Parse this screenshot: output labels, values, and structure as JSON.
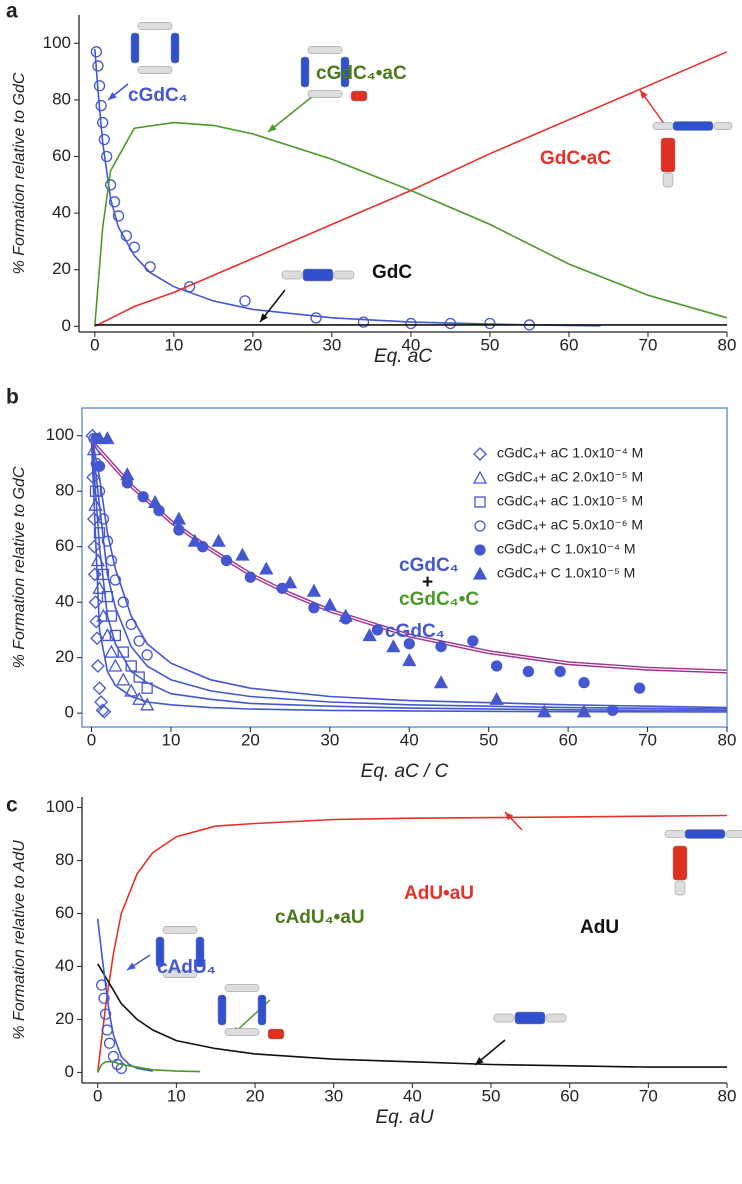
{
  "chart_data": [
    {
      "type": "line",
      "panel_label": "a",
      "xlabel": "Eq. aC",
      "ylabel": "% Formation relative to GdC",
      "xlim": [
        -2,
        80
      ],
      "ylim": [
        -2,
        110
      ],
      "xticks": [
        0,
        10,
        20,
        30,
        40,
        50,
        60,
        70,
        80
      ],
      "yticks": [
        0,
        20,
        40,
        60,
        80,
        100
      ],
      "series": [
        {
          "color": "#4457d0",
          "mode": "line",
          "x": [
            0,
            0.5,
            1,
            2,
            3,
            5,
            7,
            10,
            15,
            20,
            30,
            40,
            50,
            60,
            64
          ],
          "values": [
            98,
            80,
            65,
            45,
            35,
            25,
            19,
            14,
            9,
            6,
            3,
            1.5,
            0.8,
            0.3,
            0.2
          ]
        },
        {
          "color": "#4457d0",
          "mode": "markers",
          "marker": "circle-open",
          "x": [
            0.2,
            0.4,
            0.6,
            0.8,
            1,
            1.2,
            1.5,
            2,
            2.5,
            3,
            4,
            5,
            7,
            12,
            19,
            28,
            34,
            40,
            45,
            50,
            55
          ],
          "values": [
            97,
            92,
            85,
            78,
            72,
            66,
            60,
            50,
            44,
            39,
            32,
            28,
            21,
            14,
            9,
            3,
            1.5,
            1,
            1,
            1,
            0.5
          ]
        },
        {
          "color": "#4a9a2a",
          "mode": "line",
          "x": [
            0,
            1,
            2,
            5,
            10,
            15,
            20,
            30,
            40,
            50,
            60,
            70,
            80
          ],
          "values": [
            0,
            35,
            55,
            70,
            72,
            71,
            68,
            59,
            48,
            36,
            22,
            11,
            3
          ]
        },
        {
          "color": "#e8302a",
          "mode": "line",
          "x": [
            0,
            5,
            10,
            20,
            30,
            40,
            50,
            60,
            70,
            80
          ],
          "values": [
            0,
            7,
            12,
            24,
            36,
            48,
            61,
            73,
            85,
            97
          ]
        },
        {
          "color": "#111111",
          "mode": "line",
          "x": [
            0,
            80
          ],
          "values": [
            0.5,
            0.5
          ]
        }
      ],
      "annotations": [
        {
          "text": "cGdC₄",
          "color": "#4457d0"
        },
        {
          "text": "cGdC₄•aC",
          "color": "#4a7a1a"
        },
        {
          "text": "GdC•aC",
          "color": "#e8302a"
        },
        {
          "text": "GdC",
          "color": "#111111"
        }
      ]
    },
    {
      "type": "line",
      "panel_label": "b",
      "xlabel": "Eq. aC / C",
      "ylabel": "% Formation relative to GdC",
      "xlim": [
        -1.2,
        80
      ],
      "ylim": [
        -5,
        110
      ],
      "xticks": [
        0,
        10,
        20,
        30,
        40,
        50,
        60,
        70,
        80
      ],
      "yticks": [
        0,
        20,
        40,
        60,
        80,
        100
      ],
      "frame": true,
      "legend": "upper right",
      "series": [
        {
          "color": "#4457d0",
          "mode": "line",
          "x": [
            0,
            1,
            2,
            3,
            5,
            7,
            10,
            15,
            20,
            30,
            40,
            60,
            80
          ],
          "values": [
            98,
            30,
            15,
            10,
            6,
            4,
            3,
            2,
            1.5,
            1,
            0.8,
            0.5,
            0.4
          ]
        },
        {
          "color": "#4457d0",
          "mode": "line",
          "x": [
            0,
            1,
            2,
            3,
            5,
            7,
            10,
            15,
            20,
            30,
            40,
            60,
            80
          ],
          "values": [
            100,
            60,
            35,
            25,
            15,
            11,
            7,
            5,
            3.5,
            2.5,
            1.8,
            1.2,
            0.9
          ]
        },
        {
          "color": "#4457d0",
          "mode": "line",
          "x": [
            0,
            1,
            2,
            3,
            5,
            7,
            10,
            15,
            20,
            30,
            40,
            60,
            80
          ],
          "values": [
            100,
            75,
            50,
            38,
            24,
            17,
            12,
            8,
            6,
            4,
            3,
            2,
            1.5
          ]
        },
        {
          "color": "#4457d0",
          "mode": "line",
          "x": [
            0,
            1,
            2,
            3,
            5,
            7,
            10,
            15,
            20,
            30,
            40,
            60,
            80
          ],
          "values": [
            100,
            85,
            65,
            52,
            35,
            25,
            18,
            12,
            9,
            6,
            4.5,
            3,
            2
          ]
        },
        {
          "color": "#a0308f",
          "mode": "line",
          "double": true,
          "x": [
            0,
            5,
            10,
            15,
            20,
            25,
            30,
            40,
            50,
            60,
            70,
            80
          ],
          "values": [
            98,
            82,
            69,
            59,
            50,
            43,
            37,
            28,
            22,
            18,
            16,
            15
          ]
        },
        {
          "name": "cGdC₄+ aC 1.0x10⁻⁴ M",
          "color": "#4457d0",
          "mode": "markers",
          "marker": "diamond-open",
          "x": [
            0.1,
            0.2,
            0.3,
            0.35,
            0.4,
            0.5,
            0.6,
            0.7,
            0.8,
            1.0,
            1.2,
            1.4,
            1.6
          ],
          "values": [
            100,
            85,
            70,
            60,
            50,
            40,
            33,
            27,
            17,
            9,
            4,
            1,
            0.5
          ]
        },
        {
          "name": "cGdC₄+ aC 2.0x10⁻⁵ M",
          "color": "#4457d0",
          "mode": "markers",
          "marker": "triangle-open",
          "x": [
            0.3,
            0.5,
            0.8,
            1,
            1.5,
            2,
            2.5,
            3,
            4,
            5,
            6,
            7
          ],
          "values": [
            95,
            75,
            55,
            45,
            35,
            28,
            22,
            17,
            12,
            8,
            5,
            3
          ]
        },
        {
          "name": "cGdC₄+ aC 1.0x10⁻⁵ M",
          "color": "#4457d0",
          "mode": "markers",
          "marker": "square-open",
          "x": [
            0.5,
            1,
            1.5,
            2,
            2.5,
            3,
            4,
            5,
            6,
            7
          ],
          "values": [
            80,
            65,
            50,
            42,
            35,
            28,
            22,
            17,
            13,
            9
          ]
        },
        {
          "name": "cGdC₄+ aC 5.0x10⁻⁶ M",
          "color": "#4457d0",
          "mode": "markers",
          "marker": "circle-open",
          "x": [
            0.3,
            0.6,
            1,
            1.5,
            2,
            2.5,
            3,
            4,
            5,
            6,
            7
          ],
          "values": [
            99,
            90,
            80,
            70,
            62,
            55,
            48,
            40,
            32,
            26,
            21
          ]
        },
        {
          "name": "cGdC₄+ C 1.0x10⁻⁴ M",
          "color": "#4457d0",
          "mode": "markers",
          "marker": "circle",
          "x": [
            0.6,
            1,
            4.5,
            6.5,
            8.5,
            11,
            14,
            17,
            20,
            24,
            28,
            32,
            36,
            40,
            44,
            48,
            51,
            55,
            59,
            62,
            65.6,
            69
          ],
          "values": [
            99,
            89,
            83,
            78,
            73,
            66,
            60,
            55,
            49,
            45,
            38,
            34,
            30,
            25,
            24,
            26,
            17,
            15,
            15,
            11,
            1,
            9
          ]
        },
        {
          "name": "cGdC₄+ C 1.0x10⁻⁵ M",
          "color": "#4457d0",
          "mode": "markers",
          "marker": "triangle",
          "x": [
            1,
            2,
            4.5,
            8,
            11,
            13,
            16,
            19,
            22,
            25,
            28,
            30,
            32,
            35,
            38,
            40,
            44,
            51,
            57,
            62
          ],
          "values": [
            99,
            99,
            86,
            76,
            70,
            62,
            62,
            57,
            52,
            47,
            44,
            39,
            35,
            28,
            24,
            19,
            11,
            5,
            0.5,
            0.5
          ]
        }
      ],
      "annotations": [
        {
          "text": "cGdC₄",
          "color": "#4457d0"
        },
        {
          "text": "+",
          "color": "#111111"
        },
        {
          "text": "cGdC₄•C",
          "color": "#4a9a2a"
        },
        {
          "text": "cGdC₄",
          "color": "#4457d0"
        }
      ]
    },
    {
      "type": "line",
      "panel_label": "c",
      "xlabel": "Eq. aU",
      "ylabel": "% Formation relative to AdU",
      "xlim": [
        -2,
        80
      ],
      "ylim": [
        -4,
        104
      ],
      "xticks": [
        0,
        10,
        20,
        30,
        40,
        50,
        60,
        70,
        80
      ],
      "yticks": [
        0,
        20,
        40,
        60,
        80,
        100
      ],
      "series": [
        {
          "color": "#e8302a",
          "mode": "line",
          "x": [
            0,
            1,
            2,
            3,
            5,
            7,
            10,
            15,
            20,
            30,
            40,
            60,
            80
          ],
          "values": [
            0,
            25,
            45,
            60,
            75,
            83,
            89,
            93,
            94,
            95.5,
            96,
            96.5,
            97
          ]
        },
        {
          "color": "#111111",
          "mode": "line",
          "x": [
            0,
            1,
            2,
            3,
            5,
            7,
            10,
            15,
            20,
            30,
            40,
            50,
            60,
            70,
            80
          ],
          "values": [
            41,
            36,
            31,
            26,
            20,
            16,
            12,
            9,
            7,
            5,
            4,
            3,
            2.5,
            2,
            2
          ]
        },
        {
          "color": "#4457d0",
          "mode": "line",
          "x": [
            0,
            0.5,
            1,
            1.5,
            2,
            3,
            4,
            5,
            7
          ],
          "values": [
            58,
            45,
            33,
            22,
            14,
            6,
            3,
            1.5,
            0.5
          ]
        },
        {
          "color": "#4457d0",
          "mode": "markers",
          "marker": "circle-open",
          "x": [
            0.5,
            0.8,
            1,
            1.2,
            1.5,
            2,
            2.5,
            3
          ],
          "values": [
            33,
            28,
            22,
            16,
            11,
            6,
            3,
            1.5
          ]
        },
        {
          "color": "#4a9a2a",
          "mode": "line",
          "x": [
            0,
            0.5,
            1,
            2,
            3,
            5,
            7,
            10,
            13
          ],
          "values": [
            0,
            3,
            4,
            4,
            3,
            2,
            1,
            0.5,
            0.3
          ]
        }
      ],
      "annotations": [
        {
          "text": "cAdU₄",
          "color": "#4457d0"
        },
        {
          "text": "cAdU₄•aU",
          "color": "#4a7a1a"
        },
        {
          "text": "AdU•aU",
          "color": "#e8302a"
        },
        {
          "text": "AdU",
          "color": "#111111"
        }
      ]
    }
  ]
}
